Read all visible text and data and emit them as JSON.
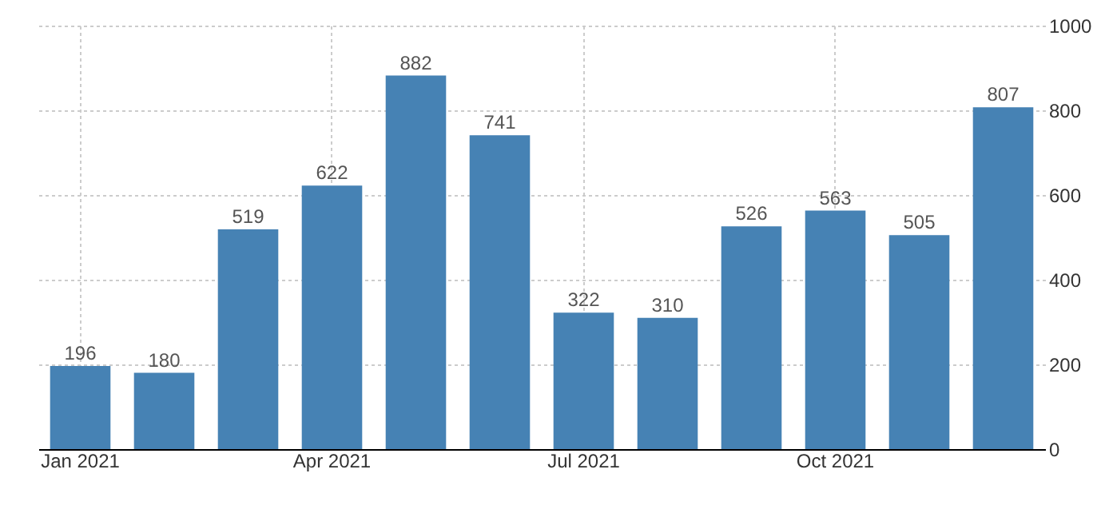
{
  "chart_data": {
    "type": "bar",
    "categories": [
      "Jan 2021",
      null,
      null,
      "Apr 2021",
      null,
      null,
      "Jul 2021",
      null,
      null,
      "Oct 2021",
      null,
      null
    ],
    "values": [
      196,
      180,
      519,
      622,
      882,
      741,
      322,
      310,
      526,
      563,
      505,
      807
    ],
    "color": "#4682b4",
    "ylim": [
      0,
      1000
    ],
    "yticks": [
      0,
      200,
      400,
      600,
      800,
      1000
    ],
    "grid": true,
    "data_labels": true
  }
}
